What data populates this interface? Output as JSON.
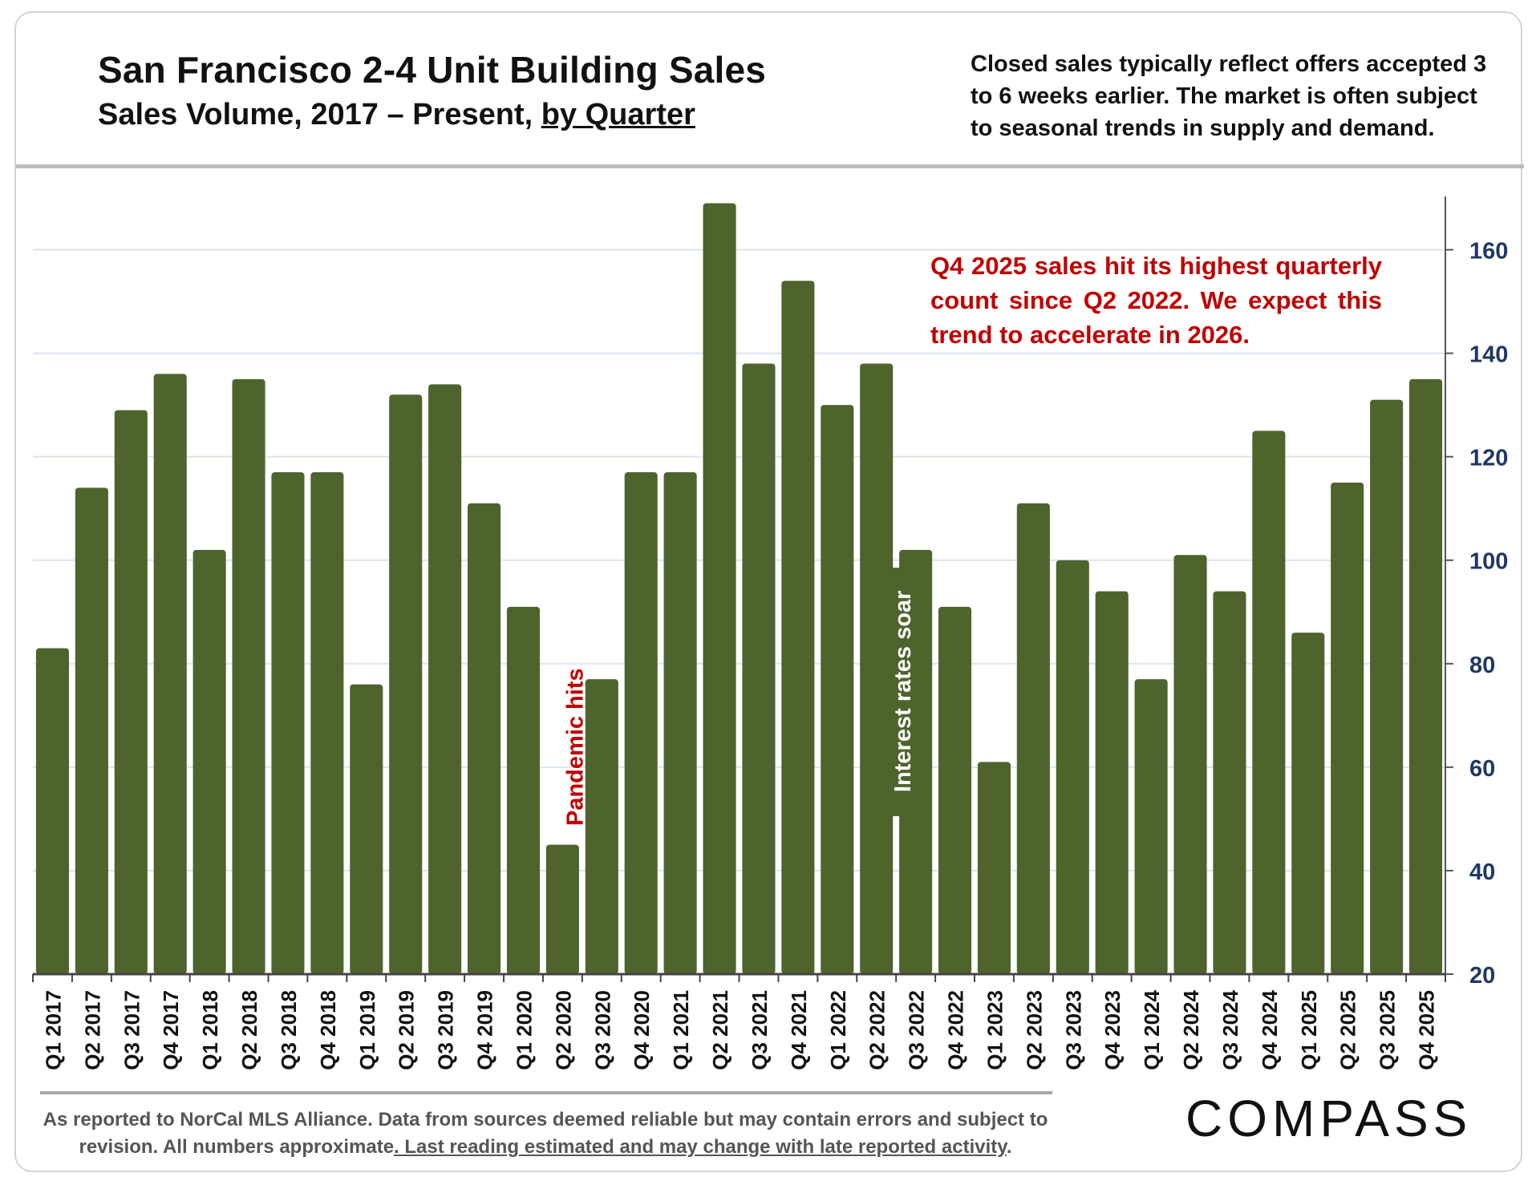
{
  "header": {
    "title": "San Francisco 2-4 Unit Building Sales",
    "subtitle_prefix": "Sales Volume, 2017 – Present, ",
    "subtitle_underlined": "by Quarter",
    "note": "Closed sales typically reflect offers accepted 3 to 6 weeks earlier. The market is often subject to seasonal trends in supply and demand."
  },
  "footer": {
    "footnote_plain": "As reported to NorCal MLS Alliance. Data from sources deemed reliable but may contain errors and subject to revision. All numbers approximate",
    "footnote_underlined": ". Last reading estimated and may change with late reported activity",
    "footnote_end": ".",
    "logo": "COMPASS"
  },
  "colors": {
    "bar": "#4f632d",
    "annotation_red": "#c00000",
    "axis_text": "#1f3864",
    "grid": "#dde5ee"
  },
  "chart_data": {
    "type": "bar",
    "title": "San Francisco 2-4 Unit Building Sales",
    "ylabel": "",
    "xlabel": "",
    "y_axis_side": "right",
    "ylim": [
      20,
      170
    ],
    "yticks": [
      20,
      40,
      60,
      80,
      100,
      120,
      140,
      160
    ],
    "grid": true,
    "categories": [
      "Q1 2017",
      "Q2 2017",
      "Q3 2017",
      "Q4 2017",
      "Q1 2018",
      "Q2 2018",
      "Q3 2018",
      "Q4 2018",
      "Q1 2019",
      "Q2 2019",
      "Q3 2019",
      "Q4 2019",
      "Q1 2020",
      "Q2 2020",
      "Q3 2020",
      "Q4 2020",
      "Q1 2021",
      "Q2 2021",
      "Q3 2021",
      "Q4 2021",
      "Q1 2022",
      "Q2 2022",
      "Q3 2022",
      "Q4 2022",
      "Q1 2023",
      "Q2 2023",
      "Q3 2023",
      "Q4 2023",
      "Q1 2024",
      "Q2 2024",
      "Q3 2024",
      "Q4 2024",
      "Q1 2025",
      "Q2 2025",
      "Q3 2025",
      "Q4 2025"
    ],
    "values": [
      83,
      114,
      129,
      136,
      102,
      135,
      117,
      117,
      76,
      132,
      134,
      111,
      91,
      45,
      77,
      117,
      117,
      169,
      138,
      154,
      130,
      138,
      102,
      91,
      61,
      111,
      100,
      94,
      77,
      101,
      94,
      125,
      86,
      115,
      131,
      135
    ],
    "annotations": [
      {
        "text": "Pandemic hits",
        "category": "Q2 2020",
        "color": "red"
      },
      {
        "text": "Interest rates soar",
        "category": "Q3 2022",
        "color": "white"
      },
      {
        "text": "Q4 2025 sales hit its highest quarterly count since Q2 2022. We expect this trend to accelerate in 2026.",
        "color": "red"
      }
    ]
  }
}
